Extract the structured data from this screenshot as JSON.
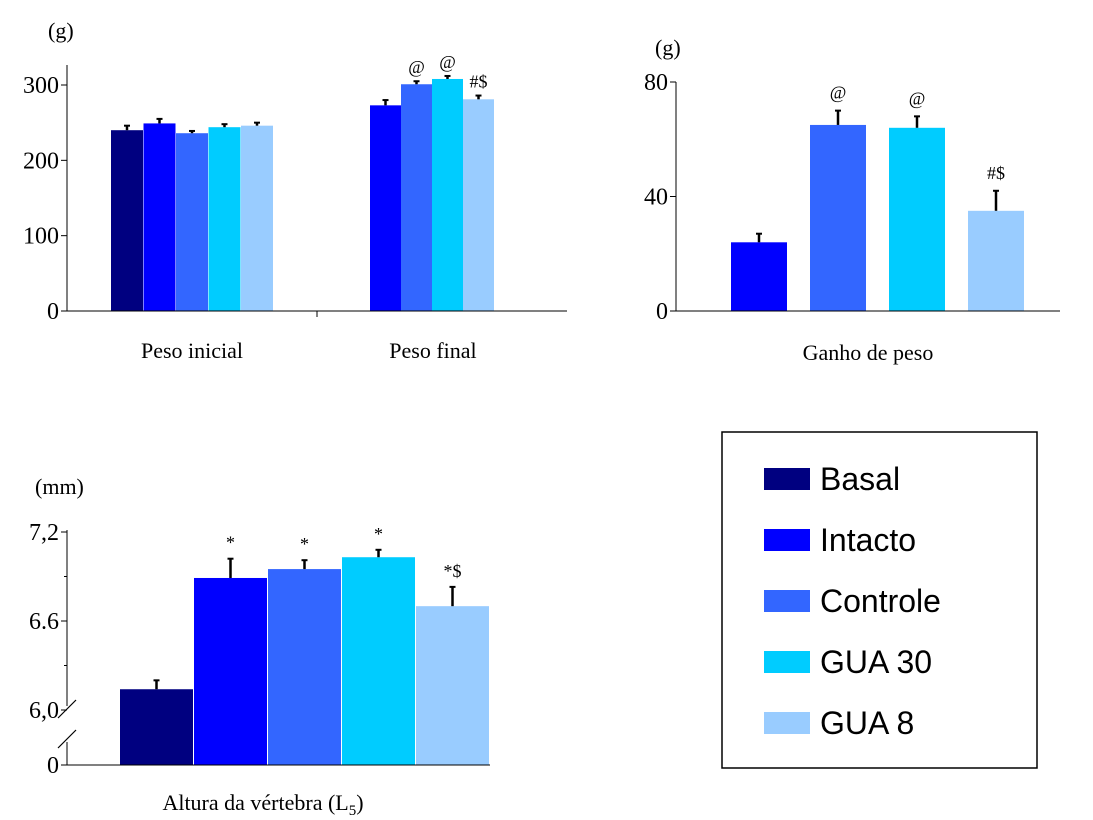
{
  "colors": {
    "Basal": "#000080",
    "Intacto": "#0000FF",
    "Controle": "#3366FF",
    "GUA 30": "#00CCFF",
    "GUA 8": "#99CCFF"
  },
  "legend": {
    "entries": [
      "Basal",
      "Intacto",
      "Controle",
      "GUA 30",
      "GUA 8"
    ]
  },
  "chart_data": [
    {
      "id": "weight",
      "type": "bar",
      "ylabel": "(g)",
      "ylim": [
        0,
        300
      ],
      "yticks": [
        "0",
        "100",
        "200",
        "300"
      ],
      "yticks_values": [
        0,
        100,
        200,
        300
      ],
      "categories": [
        "Peso inicial",
        "Peso final"
      ],
      "series": [
        {
          "name": "Basal",
          "values": [
            240,
            null
          ],
          "errors": [
            6,
            null
          ],
          "annotations": [
            "",
            ""
          ]
        },
        {
          "name": "Intacto",
          "values": [
            249,
            273
          ],
          "errors": [
            6,
            7
          ],
          "annotations": [
            "",
            ""
          ]
        },
        {
          "name": "Controle",
          "values": [
            236,
            301
          ],
          "errors": [
            3,
            4
          ],
          "annotations": [
            "",
            "@"
          ]
        },
        {
          "name": "GUA 30",
          "values": [
            244,
            308
          ],
          "errors": [
            4,
            4
          ],
          "annotations": [
            "",
            "@"
          ]
        },
        {
          "name": "GUA 8",
          "values": [
            246,
            281
          ],
          "errors": [
            4,
            5
          ],
          "annotations": [
            "",
            "#$"
          ]
        }
      ]
    },
    {
      "id": "gain",
      "type": "bar",
      "ylabel": "(g)",
      "ylim": [
        0,
        80
      ],
      "yticks": [
        "0",
        "40",
        "80"
      ],
      "yticks_values": [
        0,
        40,
        80
      ],
      "categories": [
        "Ganho de peso"
      ],
      "series": [
        {
          "name": "Intacto",
          "values": [
            24
          ],
          "errors": [
            3
          ],
          "annotations": [
            ""
          ]
        },
        {
          "name": "Controle",
          "values": [
            65
          ],
          "errors": [
            5
          ],
          "annotations": [
            "@"
          ]
        },
        {
          "name": "GUA 30",
          "values": [
            64
          ],
          "errors": [
            4
          ],
          "annotations": [
            "@"
          ]
        },
        {
          "name": "GUA 8",
          "values": [
            35
          ],
          "errors": [
            7
          ],
          "annotations": [
            "#$"
          ]
        }
      ]
    },
    {
      "id": "height",
      "type": "bar",
      "ylabel": "(mm)",
      "ylim": [
        6.0,
        7.2
      ],
      "axis_break": true,
      "yticks": [
        "0",
        "6,0",
        "6.6",
        "7,2"
      ],
      "categories": [
        "Altura da vértebra (L5)"
      ],
      "xlabel_main": "Altura da vértebra (L",
      "xlabel_sub": "5",
      "xlabel_end": ")",
      "series": [
        {
          "name": "Basal",
          "values": [
            6.14
          ],
          "errors": [
            0.06
          ],
          "annotations": [
            ""
          ]
        },
        {
          "name": "Intacto",
          "values": [
            6.89
          ],
          "errors": [
            0.13
          ],
          "annotations": [
            "*"
          ]
        },
        {
          "name": "Controle",
          "values": [
            6.95
          ],
          "errors": [
            0.06
          ],
          "annotations": [
            "*"
          ]
        },
        {
          "name": "GUA 30",
          "values": [
            7.03
          ],
          "errors": [
            0.05
          ],
          "annotations": [
            "*"
          ]
        },
        {
          "name": "GUA 8",
          "values": [
            6.7
          ],
          "errors": [
            0.13
          ],
          "annotations": [
            "*$"
          ]
        }
      ]
    }
  ]
}
